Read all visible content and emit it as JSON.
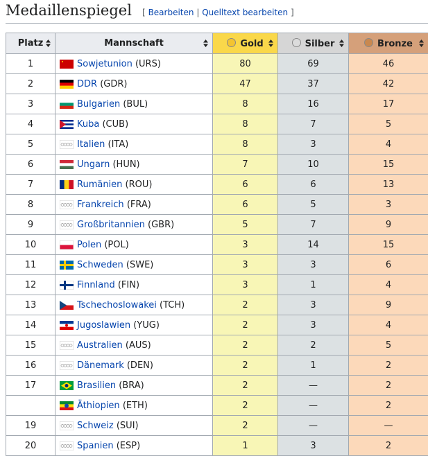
{
  "header": {
    "title": "Medaillenspiegel",
    "open": "[",
    "edit": "Bearbeiten",
    "separator": "|",
    "source_edit": "Quelltext bearbeiten",
    "close": "]"
  },
  "table": {
    "columns": [
      "Platz",
      "Mannschaft",
      "Gold",
      "Silber",
      "Bronze"
    ],
    "rows": [
      [
        1,
        "Sowjetunion",
        "(URS)",
        80,
        69,
        46
      ],
      [
        2,
        "DDR",
        "(GDR)",
        47,
        37,
        42
      ],
      [
        3,
        "Bulgarien",
        "(BUL)",
        8,
        16,
        17
      ],
      [
        4,
        "Kuba",
        "(CUB)",
        8,
        7,
        5
      ],
      [
        5,
        "Italien",
        "(ITA)",
        8,
        3,
        4
      ],
      [
        6,
        "Ungarn",
        "(HUN)",
        7,
        10,
        15
      ],
      [
        7,
        "Rumänien",
        "(ROU)",
        6,
        6,
        13
      ],
      [
        8,
        "Frankreich",
        "(FRA)",
        6,
        5,
        3
      ],
      [
        9,
        "Großbritannien",
        "(GBR)",
        5,
        7,
        9
      ],
      [
        10,
        "Polen",
        "(POL)",
        3,
        14,
        15
      ],
      [
        11,
        "Schweden",
        "(SWE)",
        3,
        3,
        6
      ],
      [
        12,
        "Finnland",
        "(FIN)",
        3,
        1,
        4
      ],
      [
        13,
        "Tschechoslowakei",
        "(TCH)",
        2,
        3,
        9
      ],
      [
        14,
        "Jugoslawien",
        "(YUG)",
        2,
        3,
        4
      ],
      [
        15,
        "Australien",
        "(AUS)",
        2,
        2,
        5
      ],
      [
        16,
        "Dänemark",
        "(DEN)",
        2,
        1,
        2
      ],
      [
        17,
        "Brasilien",
        "(BRA)",
        2,
        "—",
        2
      ],
      [
        null,
        "Äthiopien",
        "(ETH)",
        2,
        "—",
        2
      ],
      [
        19,
        "Schweiz",
        "(SUI)",
        2,
        "—",
        "—"
      ],
      [
        20,
        "Spanien",
        "(ESP)",
        1,
        3,
        2
      ]
    ]
  }
}
